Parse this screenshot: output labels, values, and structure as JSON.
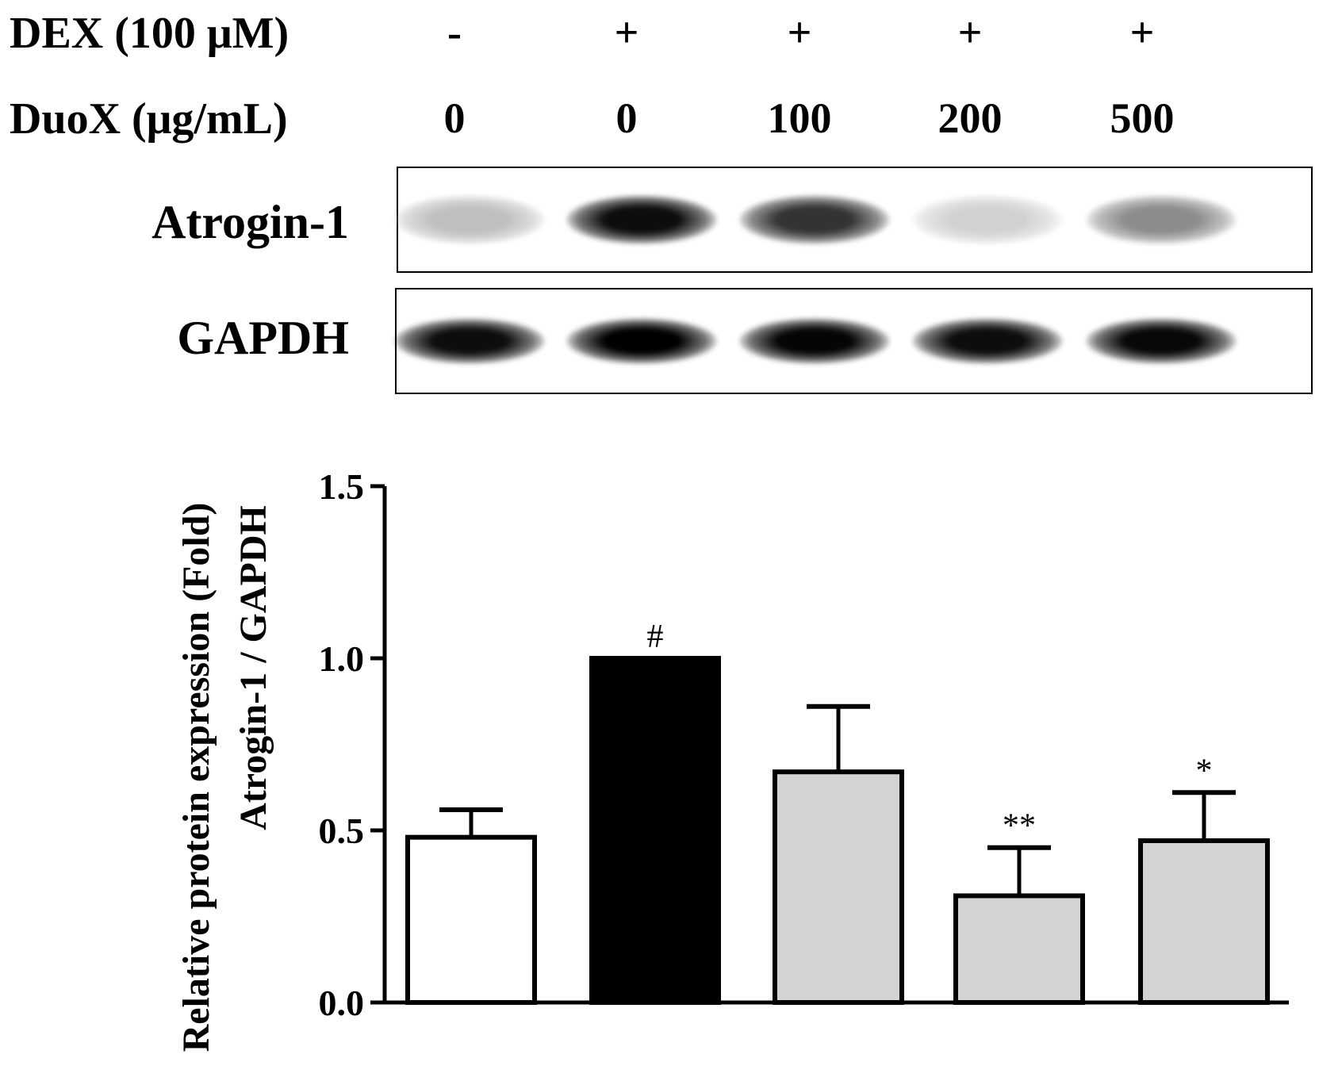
{
  "conditions": {
    "dex_label": "DEX (100 μM)",
    "duox_label": "DuoX (μg/mL)",
    "dex_values": [
      "-",
      "+",
      "+",
      "+",
      "+"
    ],
    "duox_values": [
      "0",
      "0",
      "100",
      "200",
      "500"
    ]
  },
  "blots": {
    "atrogin_label": "Atrogin-1",
    "gapdh_label": "GAPDH",
    "atrogin_intensity": [
      0.25,
      0.95,
      0.8,
      0.18,
      0.45
    ],
    "gapdh_intensity": [
      0.95,
      1.0,
      0.98,
      0.95,
      0.97
    ]
  },
  "chart_data": {
    "type": "bar",
    "categories": [
      "0",
      "0",
      "100",
      "200",
      "500"
    ],
    "values": [
      0.48,
      1.0,
      0.67,
      0.31,
      0.47
    ],
    "errors": [
      0.08,
      0.0,
      0.19,
      0.14,
      0.14
    ],
    "annotations": [
      "",
      "#",
      "",
      "**",
      "*"
    ],
    "bar_colors": [
      "#ffffff",
      "#000000",
      "#d3d3d3",
      "#d3d3d3",
      "#d3d3d3"
    ],
    "ylabel_line1": "Relative protein expression (Fold)",
    "ylabel_line2": "Atrogin-1 / GAPDH",
    "ylim": [
      0,
      1.5
    ],
    "yticks": [
      "0.0",
      "0.5",
      "1.0",
      "1.5"
    ],
    "grid": false
  }
}
